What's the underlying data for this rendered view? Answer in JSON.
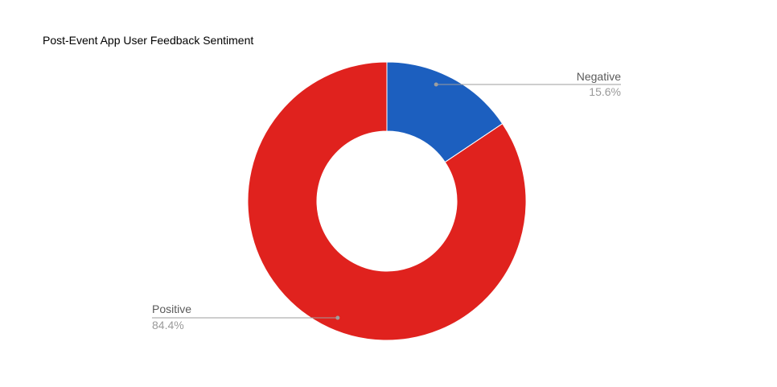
{
  "chart_data": {
    "type": "pie",
    "title": "Post-Event App User Feedback Sentiment",
    "donut": true,
    "start_angle_deg": 0,
    "legend": "none",
    "slices": [
      {
        "label": "Negative",
        "value": 15.6,
        "percent_label": "15.6%",
        "color": "#1c5fbf"
      },
      {
        "label": "Positive",
        "value": 84.4,
        "percent_label": "84.4%",
        "color": "#e0221e"
      }
    ]
  }
}
